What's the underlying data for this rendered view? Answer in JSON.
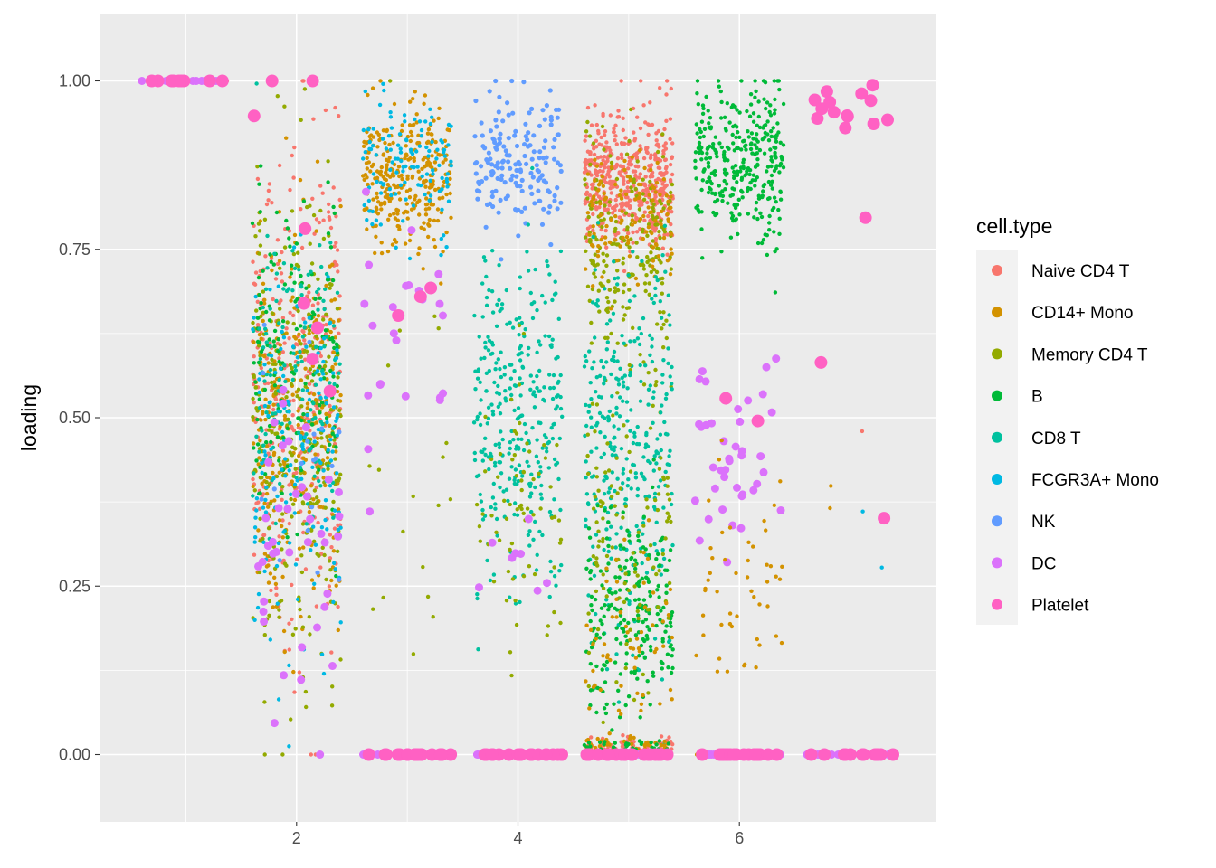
{
  "chart_data": {
    "type": "scatter",
    "title": "",
    "xlabel": "",
    "ylabel": "loading",
    "xlim": [
      0.22,
      7.78
    ],
    "ylim": [
      -0.1,
      1.1
    ],
    "x_ticks": [
      2,
      4,
      6
    ],
    "y_ticks": [
      0.0,
      0.25,
      0.5,
      0.75,
      1.0
    ],
    "y_tick_labels": [
      "0.00",
      "0.25",
      "0.50",
      "0.75",
      "1.00"
    ],
    "x_tick_labels": [
      "2",
      "4",
      "6"
    ],
    "grid": true,
    "jitter_width": 0.4,
    "legend": {
      "title": "cell.type",
      "position": "right",
      "entries": [
        {
          "name": "Naive CD4 T",
          "color": "#F8766D"
        },
        {
          "name": "CD14+ Mono",
          "color": "#D39200"
        },
        {
          "name": "Memory CD4 T",
          "color": "#93AA00"
        },
        {
          "name": "B",
          "color": "#00BA38"
        },
        {
          "name": "CD8 T",
          "color": "#00C19F"
        },
        {
          "name": "FCGR3A+ Mono",
          "color": "#00B9E3"
        },
        {
          "name": "NK",
          "color": "#619CFF"
        },
        {
          "name": "DC",
          "color": "#DB72FB"
        },
        {
          "name": "Platelet",
          "color": "#FF61C3"
        }
      ]
    },
    "point_size_by_type": {
      "Naive CD4 T": 2.2,
      "CD14+ Mono": 2.2,
      "Memory CD4 T": 2.2,
      "B": 2.2,
      "CD8 T": 2.2,
      "FCGR3A+ Mono": 2.2,
      "NK": 2.6,
      "DC": 4.5,
      "Platelet": 7.0
    },
    "groups": [
      {
        "x": 1,
        "clusters": [
          {
            "type": "Naive CD4 T",
            "n": 6,
            "mean": 1.0,
            "sd": 0.0
          },
          {
            "type": "CD14+ Mono",
            "n": 6,
            "mean": 1.0,
            "sd": 0.0
          },
          {
            "type": "Memory CD4 T",
            "n": 6,
            "mean": 1.0,
            "sd": 0.0
          },
          {
            "type": "B",
            "n": 6,
            "mean": 1.0,
            "sd": 0.0
          },
          {
            "type": "CD8 T",
            "n": 6,
            "mean": 1.0,
            "sd": 0.0
          },
          {
            "type": "DC",
            "n": 10,
            "mean": 1.0,
            "sd": 0.0
          },
          {
            "type": "Platelet",
            "n": 10,
            "mean": 1.0,
            "sd": 0.0
          }
        ]
      },
      {
        "x": 2,
        "clusters": [
          {
            "type": "Naive CD4 T",
            "n": 340,
            "mean": 0.55,
            "sd": 0.17
          },
          {
            "type": "CD14+ Mono",
            "n": 280,
            "mean": 0.5,
            "sd": 0.15
          },
          {
            "type": "Memory CD4 T",
            "n": 300,
            "mean": 0.48,
            "sd": 0.16
          },
          {
            "type": "B",
            "n": 160,
            "mean": 0.58,
            "sd": 0.12
          },
          {
            "type": "CD8 T",
            "n": 140,
            "mean": 0.55,
            "sd": 0.13
          },
          {
            "type": "FCGR3A+ Mono",
            "n": 160,
            "mean": 0.45,
            "sd": 0.14
          },
          {
            "type": "NK",
            "n": 20,
            "mean": 0.45,
            "sd": 0.1
          },
          {
            "type": "DC",
            "n": 40,
            "mean": 0.3,
            "sd": 0.12
          },
          {
            "type": "Platelet",
            "n": 8,
            "mean": 0.8,
            "sd": 0.15
          }
        ]
      },
      {
        "x": 3,
        "clusters": [
          {
            "type": "CD14+ Mono",
            "n": 300,
            "mean": 0.86,
            "sd": 0.05
          },
          {
            "type": "FCGR3A+ Mono",
            "n": 120,
            "mean": 0.87,
            "sd": 0.05
          },
          {
            "type": "Memory CD4 T",
            "n": 20,
            "mean": 0.5,
            "sd": 0.2
          },
          {
            "type": "DC",
            "n": 24,
            "mean": 0.62,
            "sd": 0.09
          },
          {
            "type": "Platelet",
            "n": 3,
            "mean": 0.67,
            "sd": 0.03
          },
          {
            "type": "Naive CD4 T",
            "n": 25,
            "mean": 0.0,
            "sd": 0.0
          },
          {
            "type": "B",
            "n": 25,
            "mean": 0.0,
            "sd": 0.0
          },
          {
            "type": "CD8 T",
            "n": 25,
            "mean": 0.0,
            "sd": 0.0
          },
          {
            "type": "DC",
            "n": 18,
            "mean": 0.0,
            "sd": 0.0
          },
          {
            "type": "Platelet",
            "n": 18,
            "mean": 0.0,
            "sd": 0.0
          }
        ]
      },
      {
        "x": 4,
        "clusters": [
          {
            "type": "NK",
            "n": 170,
            "mean": 0.88,
            "sd": 0.05
          },
          {
            "type": "CD8 T",
            "n": 320,
            "mean": 0.5,
            "sd": 0.13
          },
          {
            "type": "Memory CD4 T",
            "n": 70,
            "mean": 0.35,
            "sd": 0.1
          },
          {
            "type": "DC",
            "n": 8,
            "mean": 0.28,
            "sd": 0.03
          },
          {
            "type": "NK",
            "n": 25,
            "mean": 0.0,
            "sd": 0.0
          },
          {
            "type": "CD8 T",
            "n": 25,
            "mean": 0.0,
            "sd": 0.0
          },
          {
            "type": "Memory CD4 T",
            "n": 18,
            "mean": 0.0,
            "sd": 0.0
          },
          {
            "type": "DC",
            "n": 24,
            "mean": 0.0,
            "sd": 0.0
          },
          {
            "type": "Platelet",
            "n": 18,
            "mean": 0.0,
            "sd": 0.0
          }
        ]
      },
      {
        "x": 5,
        "clusters": [
          {
            "type": "Naive CD4 T",
            "n": 480,
            "mean": 0.85,
            "sd": 0.05
          },
          {
            "type": "Memory CD4 T",
            "n": 220,
            "mean": 0.75,
            "sd": 0.08
          },
          {
            "type": "CD14+ Mono",
            "n": 120,
            "mean": 0.8,
            "sd": 0.05
          },
          {
            "type": "CD8 T",
            "n": 320,
            "mean": 0.45,
            "sd": 0.14
          },
          {
            "type": "B",
            "n": 220,
            "mean": 0.2,
            "sd": 0.08
          },
          {
            "type": "Memory CD4 T",
            "n": 120,
            "mean": 0.3,
            "sd": 0.12
          },
          {
            "type": "CD14+ Mono",
            "n": 60,
            "mean": 0.18,
            "sd": 0.06
          },
          {
            "type": "Naive CD4 T",
            "n": 70,
            "mean": 0.01,
            "sd": 0.008
          },
          {
            "type": "CD14+ Mono",
            "n": 60,
            "mean": 0.01,
            "sd": 0.008
          },
          {
            "type": "B",
            "n": 40,
            "mean": 0.01,
            "sd": 0.008
          },
          {
            "type": "DC",
            "n": 30,
            "mean": 0.0,
            "sd": 0.0
          },
          {
            "type": "Platelet",
            "n": 20,
            "mean": 0.0,
            "sd": 0.0
          }
        ]
      },
      {
        "x": 6,
        "clusters": [
          {
            "type": "B",
            "n": 330,
            "mean": 0.88,
            "sd": 0.06
          },
          {
            "type": "DC",
            "n": 40,
            "mean": 0.42,
            "sd": 0.08
          },
          {
            "type": "CD14+ Mono",
            "n": 50,
            "mean": 0.25,
            "sd": 0.08
          },
          {
            "type": "Platelet",
            "n": 2,
            "mean": 0.51,
            "sd": 0.01
          },
          {
            "type": "CD14+ Mono",
            "n": 30,
            "mean": 0.0,
            "sd": 0.0
          },
          {
            "type": "B",
            "n": 25,
            "mean": 0.0,
            "sd": 0.0
          },
          {
            "type": "DC",
            "n": 24,
            "mean": 0.0,
            "sd": 0.0
          },
          {
            "type": "Platelet",
            "n": 18,
            "mean": 0.0,
            "sd": 0.0
          }
        ]
      },
      {
        "x": 7,
        "clusters": [
          {
            "type": "Platelet",
            "n": 14,
            "mean": 0.95,
            "sd": 0.02
          },
          {
            "type": "Platelet",
            "n": 3,
            "mean": 0.58,
            "sd": 0.15
          },
          {
            "type": "Naive CD4 T",
            "n": 1,
            "mean": 0.48,
            "sd": 0.0
          },
          {
            "type": "CD14+ Mono",
            "n": 2,
            "mean": 0.36,
            "sd": 0.04
          },
          {
            "type": "FCGR3A+ Mono",
            "n": 2,
            "mean": 0.3,
            "sd": 0.05
          },
          {
            "type": "Naive CD4 T",
            "n": 10,
            "mean": 0.0,
            "sd": 0.0
          },
          {
            "type": "CD8 T",
            "n": 10,
            "mean": 0.0,
            "sd": 0.0
          },
          {
            "type": "DC",
            "n": 12,
            "mean": 0.0,
            "sd": 0.0
          },
          {
            "type": "Platelet",
            "n": 12,
            "mean": 0.0,
            "sd": 0.0
          }
        ]
      }
    ]
  }
}
